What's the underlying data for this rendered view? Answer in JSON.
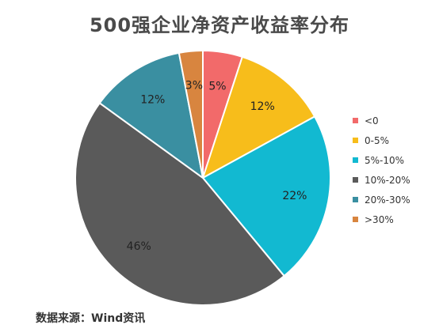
{
  "chart_data": {
    "type": "pie",
    "title": "500强企业净资产收益率分布",
    "categories": [
      "<0",
      "0-5%",
      "5%-10%",
      "10%-20%",
      "20%-30%",
      ">30%"
    ],
    "values": [
      5,
      12,
      22,
      46,
      12,
      3
    ],
    "labels": [
      "5%",
      "12%",
      "22%",
      "46%",
      "12%",
      "3%"
    ],
    "colors": [
      "#f26a6a",
      "#f7bd1b",
      "#12b9d1",
      "#5a5a5a",
      "#3a8fa1",
      "#d8853f"
    ],
    "legend_position": "right"
  },
  "source": "数据来源：Wind资讯"
}
